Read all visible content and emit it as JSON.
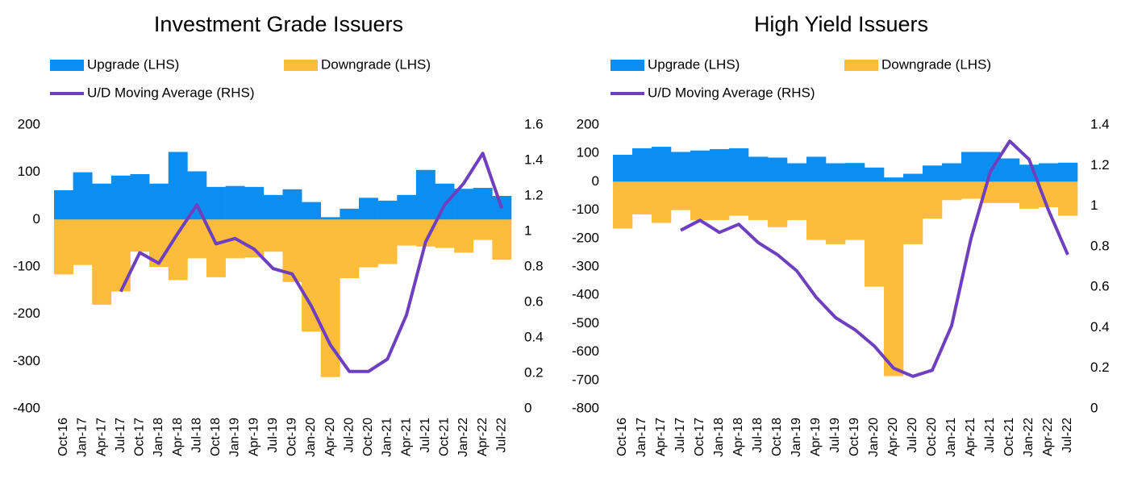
{
  "chart_data": [
    {
      "type": "bar",
      "title": "Investment Grade Issuers",
      "categories": [
        "Oct-16",
        "Jan-17",
        "Apr-17",
        "Jul-17",
        "Oct-17",
        "Jan-18",
        "Apr-18",
        "Jul-18",
        "Oct-18",
        "Jan-19",
        "Apr-19",
        "Jul-19",
        "Oct-19",
        "Jan-20",
        "Apr-20",
        "Jul-20",
        "Oct-20",
        "Jan-21",
        "Apr-21",
        "Jul-21",
        "Oct-21",
        "Jan-22",
        "Apr-22",
        "Jul-22"
      ],
      "series": [
        {
          "name": "Upgrade (LHS)",
          "color": "#0b8ef0",
          "values": [
            62,
            100,
            76,
            93,
            96,
            76,
            143,
            102,
            69,
            71,
            69,
            52,
            64,
            37,
            5,
            23,
            46,
            40,
            52,
            105,
            76,
            65,
            67,
            50
          ]
        },
        {
          "name": "Downgrade (LHS)",
          "color": "#fdbc3b",
          "values": [
            -116,
            -96,
            -180,
            -152,
            -68,
            -100,
            -128,
            -82,
            -122,
            -82,
            -80,
            -68,
            -132,
            -237,
            -333,
            -124,
            -101,
            -94,
            -55,
            -57,
            -60,
            -70,
            -43,
            -85
          ]
        },
        {
          "name": "U/D Moving Average (RHS)",
          "color": "#6e3fbe",
          "axis": "y2",
          "values": [
            null,
            null,
            null,
            0.66,
            0.88,
            0.82,
            0.99,
            1.15,
            0.93,
            0.96,
            0.9,
            0.79,
            0.76,
            0.58,
            0.36,
            0.21,
            0.21,
            0.28,
            0.53,
            0.94,
            1.15,
            1.27,
            1.44,
            1.13
          ]
        }
      ],
      "ylim": [
        -400,
        200
      ],
      "yticks": [
        -400,
        -300,
        -200,
        -100,
        0,
        100,
        200
      ],
      "y2lim": [
        0,
        1.6
      ],
      "y2ticks": [
        0,
        0.2,
        0.4,
        0.6,
        0.8,
        1,
        1.2,
        1.4,
        1.6
      ]
    },
    {
      "type": "bar",
      "title": "High Yield Issuers",
      "categories": [
        "Oct-16",
        "Jan-17",
        "Apr-17",
        "Jul-17",
        "Oct-17",
        "Jan-18",
        "Apr-18",
        "Jul-18",
        "Oct-18",
        "Jan-19",
        "Apr-19",
        "Jul-19",
        "Oct-19",
        "Jan-20",
        "Apr-20",
        "Jul-20",
        "Oct-20",
        "Jan-21",
        "Apr-21",
        "Jul-21",
        "Oct-21",
        "Jan-22",
        "Apr-22",
        "Jul-22"
      ],
      "series": [
        {
          "name": "Upgrade (LHS)",
          "color": "#0b8ef0",
          "values": [
            95,
            118,
            123,
            105,
            110,
            115,
            118,
            88,
            85,
            65,
            88,
            65,
            66,
            50,
            15,
            28,
            57,
            65,
            105,
            105,
            82,
            60,
            65,
            67
          ]
        },
        {
          "name": "Downgrade (LHS)",
          "color": "#fdbc3b",
          "values": [
            -165,
            -115,
            -145,
            -100,
            -135,
            -135,
            -120,
            -135,
            -160,
            -135,
            -205,
            -220,
            -205,
            -370,
            -685,
            -220,
            -130,
            -65,
            -60,
            -75,
            -75,
            -95,
            -90,
            -120
          ]
        },
        {
          "name": "U/D Moving Average (RHS)",
          "color": "#6e3fbe",
          "axis": "y2",
          "values": [
            null,
            null,
            null,
            0.88,
            0.93,
            0.87,
            0.91,
            0.82,
            0.76,
            0.68,
            0.55,
            0.45,
            0.39,
            0.31,
            0.2,
            0.16,
            0.19,
            0.41,
            0.84,
            1.17,
            1.32,
            1.23,
            0.98,
            0.76
          ]
        }
      ],
      "ylim": [
        -800,
        200
      ],
      "yticks": [
        -800,
        -700,
        -600,
        -500,
        -400,
        -300,
        -200,
        -100,
        0,
        100,
        200
      ],
      "y2lim": [
        0,
        1.4
      ],
      "y2ticks": [
        0,
        0.2,
        0.4,
        0.6,
        0.8,
        1,
        1.2,
        1.4
      ]
    }
  ]
}
